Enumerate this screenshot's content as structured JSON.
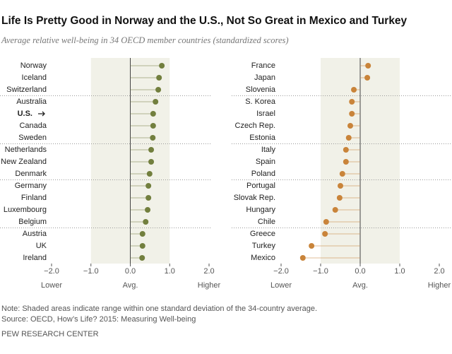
{
  "title": "Life Is Pretty Good in Norway and the U.S., Not So Great in Mexico and Turkey",
  "subtitle": "Average relative well-being in 34 OECD member countries (standardized scores)",
  "note": "Note: Shaded areas indicate range within one standard deviation of the 34-country average.",
  "source": "Source: OECD, How’s Life? 2015: Measuring Well-being",
  "credit": "PEW RESEARCH CENTER",
  "chart_data": [
    {
      "type": "lollipop",
      "color": "#727f3e",
      "categories": [
        "Norway",
        "Iceland",
        "Switzerland",
        "Australia",
        "U.S.",
        "Canada",
        "Sweden",
        "Netherlands",
        "New Zealand",
        "Denmark",
        "Germany",
        "Finland",
        "Luxembourg",
        "Belgium",
        "Austria",
        "UK",
        "Ireland"
      ],
      "values": [
        0.8,
        0.73,
        0.71,
        0.64,
        0.58,
        0.58,
        0.57,
        0.53,
        0.53,
        0.49,
        0.46,
        0.46,
        0.44,
        0.39,
        0.31,
        0.31,
        0.3
      ],
      "highlight_index": 4,
      "groups": [
        3,
        4,
        3,
        4,
        3
      ],
      "xlim": [
        -2,
        2
      ],
      "band": [
        -1,
        1
      ],
      "xticks": [
        {
          "value": -2,
          "label": "−2.0"
        },
        {
          "value": -1,
          "label": "−1.0"
        },
        {
          "value": 0,
          "label": "0.0"
        },
        {
          "value": 1,
          "label": "1.0"
        },
        {
          "value": 2,
          "label": "2.0"
        }
      ],
      "annotations": [
        {
          "value": -2,
          "label": "Lower"
        },
        {
          "value": 0,
          "label": "Avg."
        },
        {
          "value": 2,
          "label": "Higher"
        }
      ]
    },
    {
      "type": "lollipop",
      "color": "#c9843a",
      "categories": [
        "France",
        "Japan",
        "Slovenia",
        "S. Korea",
        "Israel",
        "Czech Rep.",
        "Estonia",
        "Italy",
        "Spain",
        "Poland",
        "Portugal",
        "Slovak Rep.",
        "Hungary",
        "Chile",
        "Greece",
        "Turkey",
        "Mexico"
      ],
      "values": [
        0.2,
        0.18,
        -0.16,
        -0.21,
        -0.21,
        -0.25,
        -0.29,
        -0.36,
        -0.36,
        -0.45,
        -0.5,
        -0.52,
        -0.63,
        -0.86,
        -0.89,
        -1.23,
        -1.45
      ],
      "groups": [
        3,
        4,
        3,
        4,
        3
      ],
      "xlim": [
        -2,
        2
      ],
      "band": [
        -1,
        1
      ],
      "xticks": [
        {
          "value": -2,
          "label": "−2.0"
        },
        {
          "value": -1,
          "label": "−1.0"
        },
        {
          "value": 0,
          "label": "0.0"
        },
        {
          "value": 1,
          "label": "1.0"
        },
        {
          "value": 2,
          "label": "2.0"
        }
      ],
      "annotations": [
        {
          "value": -2,
          "label": "Lower"
        },
        {
          "value": 0,
          "label": "Avg."
        },
        {
          "value": 2,
          "label": "Higher"
        }
      ]
    }
  ]
}
